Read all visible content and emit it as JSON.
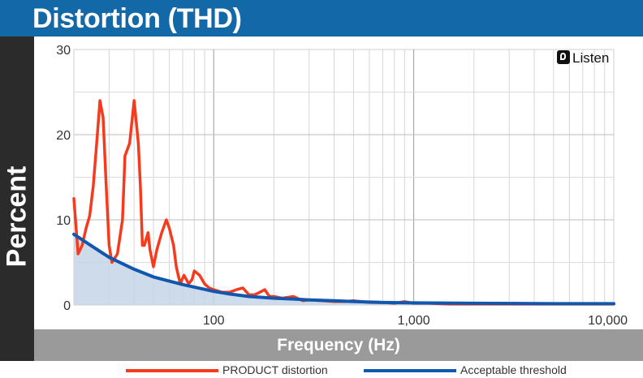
{
  "header": {
    "title": "Distortion (THD)"
  },
  "brand": {
    "text": "Listen"
  },
  "colors": {
    "header_bg": "#1369a7",
    "product": "#f53b1e",
    "threshold": "#1057b0",
    "threshold_fill": "#c5d5e8"
  },
  "chart_data": {
    "type": "line",
    "title": "Distortion (THD)",
    "xlabel": "Frequency (Hz)",
    "ylabel": "Percent",
    "x_scale": "log",
    "xlim": [
      20,
      10000
    ],
    "ylim": [
      0,
      30
    ],
    "x_ticks": [
      100,
      1000,
      10000
    ],
    "x_tick_labels": [
      "100",
      "1,000",
      "10,000"
    ],
    "y_ticks": [
      0,
      10,
      20,
      30
    ],
    "y_tick_labels": [
      "0",
      "10",
      "20",
      "30"
    ],
    "grid": true,
    "legend_position": "bottom",
    "series": [
      {
        "name": "PRODUCT distortion",
        "color": "#f53b1e",
        "x": [
          20,
          21,
          22,
          23,
          24,
          25,
          26,
          27,
          28,
          29,
          30,
          31,
          32,
          33,
          35,
          36,
          38,
          40,
          42,
          43,
          44,
          45,
          47,
          48,
          50,
          52,
          55,
          58,
          60,
          63,
          65,
          68,
          71,
          75,
          78,
          80,
          85,
          90,
          95,
          100,
          110,
          120,
          130,
          140,
          150,
          160,
          170,
          180,
          190,
          200,
          220,
          250,
          280,
          300,
          350,
          400,
          450,
          500,
          600,
          700,
          800,
          900,
          1000,
          1200,
          1500,
          2000,
          3000,
          5000,
          8000,
          10000
        ],
        "y": [
          12.5,
          6,
          7,
          9,
          10.5,
          14,
          19,
          24,
          22,
          14,
          7,
          5,
          5.5,
          6,
          10,
          17.5,
          19,
          24,
          19,
          14,
          7,
          7,
          8.5,
          6.5,
          4.5,
          6.5,
          8.5,
          10,
          9,
          7,
          4.5,
          2.5,
          3.5,
          2.5,
          3,
          4,
          3.5,
          2.5,
          2,
          1.8,
          1.5,
          1.5,
          1.8,
          2,
          1.2,
          1.2,
          1.5,
          1.8,
          1,
          1,
          0.8,
          1,
          0.5,
          0.6,
          0.5,
          0.4,
          0.4,
          0.5,
          0.3,
          0.3,
          0.2,
          0.4,
          0.2,
          0.2,
          0.1,
          0.1,
          0.1,
          0.1,
          0.1,
          0.1
        ]
      },
      {
        "name": "Acceptable threshold",
        "color": "#1057b0",
        "x": [
          20,
          25,
          30,
          40,
          50,
          60,
          70,
          80,
          100,
          120,
          150,
          200,
          250,
          300,
          400,
          500,
          700,
          1000,
          2000,
          5000,
          10000
        ],
        "y": [
          8.3,
          6.8,
          5.6,
          4.2,
          3.3,
          2.8,
          2.4,
          2.1,
          1.6,
          1.3,
          1.0,
          0.8,
          0.7,
          0.6,
          0.5,
          0.4,
          0.3,
          0.25,
          0.2,
          0.15,
          0.15
        ]
      }
    ]
  }
}
